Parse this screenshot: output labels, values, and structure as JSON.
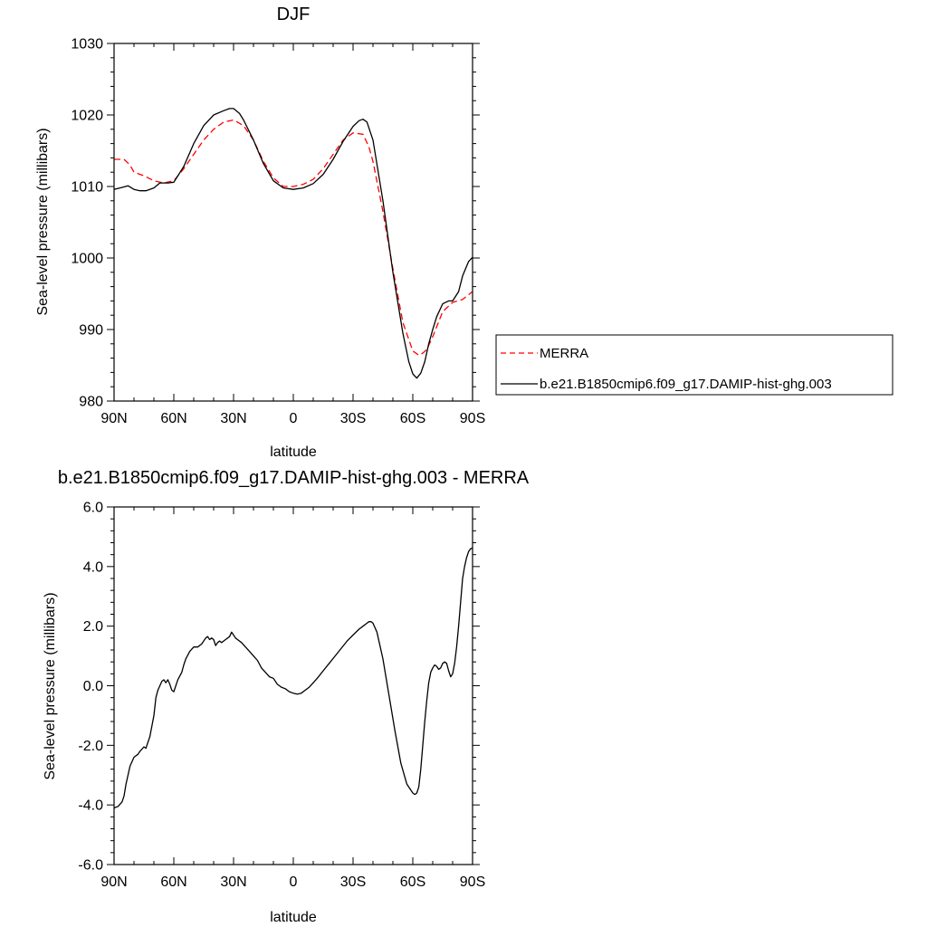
{
  "chart_data": [
    {
      "type": "line",
      "title": "DJF",
      "xlabel": "latitude",
      "ylabel": "Sea-level pressure (millibars)",
      "xlim": [
        90,
        -90
      ],
      "ylim": [
        980,
        1030
      ],
      "xticks": [
        90,
        60,
        30,
        0,
        -30,
        -60,
        -90
      ],
      "xtick_labels": [
        "90N",
        "60N",
        "30N",
        "0",
        "30S",
        "60S",
        "90S"
      ],
      "yticks": [
        980,
        990,
        1000,
        1010,
        1020,
        1030
      ],
      "ytick_labels": [
        "980",
        "990",
        "1000",
        "1010",
        "1020",
        "1030"
      ],
      "legend_position": "outside-right",
      "series": [
        {
          "name": "MERRA",
          "color": "#ff0000",
          "dash": "dashed",
          "x": [
            90,
            85,
            82,
            80,
            75,
            70,
            65,
            60,
            55,
            50,
            45,
            40,
            35,
            30,
            25,
            20,
            15,
            10,
            5,
            0,
            -5,
            -10,
            -15,
            -20,
            -25,
            -30,
            -35,
            -38,
            -40,
            -45,
            -50,
            -55,
            -60,
            -63,
            -65,
            -67,
            -70,
            -75,
            -80,
            -85,
            -90
          ],
          "y": [
            1013.8,
            1013.8,
            1013.0,
            1012.0,
            1011.5,
            1010.8,
            1010.5,
            1010.8,
            1012.5,
            1014.5,
            1016.5,
            1018.0,
            1019.0,
            1019.3,
            1018.5,
            1016.5,
            1013.5,
            1011.2,
            1010.0,
            1010.0,
            1010.3,
            1011.0,
            1012.5,
            1014.5,
            1016.5,
            1017.5,
            1017.3,
            1015.5,
            1013.5,
            1006.5,
            998.5,
            991.0,
            987.0,
            986.4,
            986.7,
            987.2,
            989.0,
            992.5,
            993.8,
            994.2,
            995.3
          ]
        },
        {
          "name": "b.e21.B1850cmip6.f09_g17.DAMIP-hist-ghg.003",
          "color": "#000000",
          "dash": "solid",
          "x": [
            90,
            87,
            83,
            80,
            77,
            74,
            70,
            67,
            63,
            60,
            55,
            50,
            45,
            40,
            35,
            32,
            30,
            27,
            25,
            20,
            15,
            10,
            5,
            0,
            -5,
            -10,
            -15,
            -20,
            -25,
            -30,
            -33,
            -35,
            -37,
            -40,
            -45,
            -50,
            -55,
            -58,
            -60,
            -62,
            -64,
            -66,
            -68,
            -70,
            -72,
            -75,
            -78,
            -80,
            -83,
            -85,
            -88,
            -90
          ],
          "y": [
            1009.6,
            1009.8,
            1010.1,
            1009.6,
            1009.4,
            1009.4,
            1009.8,
            1010.5,
            1010.5,
            1010.6,
            1012.8,
            1016.0,
            1018.5,
            1020.0,
            1020.6,
            1020.9,
            1020.9,
            1020.2,
            1019.3,
            1016.5,
            1013.2,
            1010.8,
            1009.8,
            1009.6,
            1009.8,
            1010.4,
            1011.7,
            1013.8,
            1016.3,
            1018.4,
            1019.2,
            1019.4,
            1019.0,
            1016.5,
            1008.0,
            998.0,
            989.5,
            985.5,
            983.8,
            983.2,
            983.9,
            985.5,
            988.0,
            990.0,
            991.8,
            993.6,
            994.0,
            994.0,
            995.3,
            997.5,
            999.5,
            1000.1
          ]
        }
      ]
    },
    {
      "type": "line",
      "title": "b.e21.B1850cmip6.f09_g17.DAMIP-hist-ghg.003 - MERRA",
      "xlabel": "latitude",
      "ylabel": "Sea-level pressure (millibars)",
      "xlim": [
        90,
        -90
      ],
      "ylim": [
        -6,
        6
      ],
      "xticks": [
        90,
        60,
        30,
        0,
        -30,
        -60,
        -90
      ],
      "xtick_labels": [
        "90N",
        "60N",
        "30N",
        "0",
        "30S",
        "60S",
        "90S"
      ],
      "yticks": [
        -6,
        -4,
        -2,
        0,
        2,
        4,
        6
      ],
      "ytick_labels": [
        "-6.0",
        "-4.0",
        "-2.0",
        "0.0",
        "2.0",
        "4.0",
        "6.0"
      ],
      "series": [
        {
          "color": "#000000",
          "dash": "solid",
          "x": [
            90,
            88,
            86,
            85,
            84,
            82,
            80,
            78,
            77,
            75,
            74,
            72,
            70,
            69,
            68,
            66,
            65,
            64,
            63,
            62,
            61,
            60,
            58,
            56,
            55,
            54,
            52,
            50,
            48,
            46,
            44,
            43,
            42,
            41,
            40,
            39,
            38,
            37,
            36,
            35,
            34,
            32,
            31,
            30,
            29,
            28,
            26,
            24,
            22,
            20,
            18,
            16,
            14,
            12,
            10,
            8,
            6,
            4,
            2,
            0,
            -2,
            -4,
            -6,
            -8,
            -10,
            -12,
            -15,
            -18,
            -21,
            -24,
            -27,
            -30,
            -33,
            -35,
            -37,
            -38,
            -39,
            -40,
            -42,
            -45,
            -48,
            -51,
            -54,
            -57,
            -60,
            -61,
            -62,
            -63,
            -64,
            -65,
            -66,
            -67,
            -68,
            -69,
            -70,
            -71,
            -72,
            -73,
            -74,
            -75,
            -76,
            -77,
            -78,
            -79,
            -80,
            -81,
            -82,
            -83,
            -84,
            -85,
            -86,
            -87,
            -88,
            -89,
            -90
          ],
          "y": [
            -4.1,
            -4.05,
            -3.9,
            -3.7,
            -3.3,
            -2.7,
            -2.4,
            -2.3,
            -2.2,
            -2.05,
            -2.1,
            -1.7,
            -1.0,
            -0.4,
            -0.15,
            0.15,
            0.2,
            0.1,
            0.2,
            0.05,
            -0.15,
            -0.2,
            0.2,
            0.45,
            0.7,
            0.9,
            1.15,
            1.3,
            1.3,
            1.4,
            1.6,
            1.65,
            1.55,
            1.6,
            1.55,
            1.35,
            1.45,
            1.5,
            1.45,
            1.5,
            1.55,
            1.65,
            1.8,
            1.7,
            1.6,
            1.55,
            1.45,
            1.3,
            1.15,
            1.0,
            0.85,
            0.6,
            0.45,
            0.3,
            0.25,
            0.05,
            -0.05,
            -0.1,
            -0.2,
            -0.25,
            -0.28,
            -0.25,
            -0.15,
            -0.05,
            0.1,
            0.25,
            0.5,
            0.75,
            1.0,
            1.25,
            1.5,
            1.7,
            1.9,
            2.0,
            2.1,
            2.15,
            2.15,
            2.1,
            1.8,
            0.9,
            -0.3,
            -1.5,
            -2.6,
            -3.3,
            -3.6,
            -3.65,
            -3.6,
            -3.4,
            -2.8,
            -2.0,
            -1.2,
            -0.5,
            0.1,
            0.45,
            0.6,
            0.7,
            0.65,
            0.55,
            0.6,
            0.75,
            0.8,
            0.75,
            0.5,
            0.3,
            0.4,
            0.75,
            1.3,
            2.0,
            2.8,
            3.6,
            4.0,
            4.3,
            4.5,
            4.6,
            4.62
          ]
        }
      ]
    }
  ]
}
